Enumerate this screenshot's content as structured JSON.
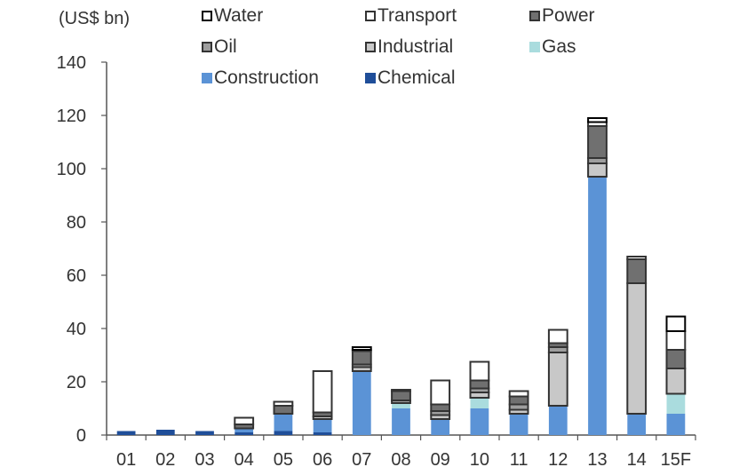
{
  "chart_data": {
    "type": "bar",
    "stacked": true,
    "unit_label": "(US$ bn)",
    "categories": [
      "01",
      "02",
      "03",
      "04",
      "05",
      "06",
      "07",
      "08",
      "09",
      "10",
      "11",
      "12",
      "13",
      "14",
      "15F"
    ],
    "ylim": [
      0,
      140
    ],
    "yticks": [
      "0",
      "20",
      "40",
      "60",
      "80",
      "100",
      "120",
      "140"
    ],
    "legend_position": "top",
    "legend": [
      "Water",
      "Transport",
      "Power",
      "Oil",
      "Industrial",
      "Gas",
      "Construction",
      "Chemical"
    ],
    "series": [
      {
        "name": "Chemical",
        "color": "#1f4e99",
        "border": "#1f4e99",
        "values": [
          1.5,
          2,
          1.5,
          1,
          1.5,
          1,
          0,
          0,
          0,
          0,
          0,
          0,
          0,
          0,
          0
        ]
      },
      {
        "name": "Construction",
        "color": "#5b93d6",
        "border": "#5b93d6",
        "values": [
          0,
          0,
          0,
          1.5,
          6.5,
          5,
          24,
          10,
          6,
          10,
          8,
          11,
          97,
          8,
          8
        ]
      },
      {
        "name": "Gas",
        "color": "#aadcde",
        "border": "#aadcde",
        "values": [
          0,
          0,
          0,
          0,
          0,
          0,
          0,
          2,
          0,
          4,
          0,
          0,
          0,
          0,
          7.5
        ]
      },
      {
        "name": "Industrial",
        "color": "#c8c8c8",
        "border": "#333333",
        "values": [
          0,
          0,
          0,
          0,
          0,
          1,
          1.5,
          0,
          1.5,
          2,
          1.5,
          20,
          5,
          49,
          9.5
        ]
      },
      {
        "name": "Oil",
        "color": "#9e9e9e",
        "border": "#333333",
        "values": [
          0,
          0,
          0,
          0,
          0,
          0,
          1,
          1,
          1.5,
          1.5,
          2,
          2,
          2,
          0,
          0
        ]
      },
      {
        "name": "Power",
        "color": "#707070",
        "border": "#333333",
        "values": [
          0,
          0,
          0,
          1.5,
          3,
          1.5,
          5,
          3.5,
          2.5,
          3,
          3,
          1.5,
          12,
          9,
          7
        ]
      },
      {
        "name": "Transport",
        "color": "#ffffff",
        "border": "#333333",
        "values": [
          0,
          0,
          0,
          2.5,
          1.5,
          15.5,
          0.5,
          0.5,
          9,
          7,
          2,
          5,
          1.5,
          1,
          7
        ]
      },
      {
        "name": "Water",
        "color": "#ffffff",
        "border": "#000000",
        "values": [
          0,
          0,
          0,
          0,
          0,
          0,
          1,
          0,
          0,
          0,
          0,
          0,
          1.5,
          0,
          5.5
        ]
      }
    ]
  }
}
